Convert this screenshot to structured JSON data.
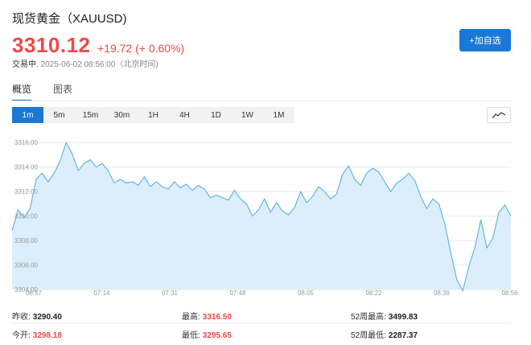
{
  "header": {
    "title": "现货黄金（XAUUSD)",
    "price": "3310.12",
    "change": "+19.72 (+ 0.60%)",
    "status_label": "交易中",
    "status_time": ", 2025-06-02 08:56:00（北京时间)",
    "add_button": "+加自选"
  },
  "tabs": [
    {
      "label": "概览",
      "active": true
    },
    {
      "label": "图表",
      "active": false
    }
  ],
  "ranges": [
    "1m",
    "5m",
    "15m",
    "30m",
    "1H",
    "4H",
    "1D",
    "1W",
    "1M"
  ],
  "active_range": "1m",
  "chart_type_icon": "line-chart-icon",
  "colors": {
    "accent": "#1a78d6",
    "up": "#f04848",
    "chart_line": "#5ab0e6",
    "chart_fill": "#dceefb"
  },
  "chart_data": {
    "type": "area",
    "y_ticks": [
      "3316.00",
      "3314.00",
      "3312.00",
      "3310.00",
      "3308.00",
      "3306.00",
      "3304.00"
    ],
    "x_ticks": [
      "06:57",
      "07:14",
      "07:31",
      "07:48",
      "08:05",
      "08:22",
      "08:39",
      "08:56"
    ],
    "ylim": [
      3304,
      3317
    ],
    "grid": true,
    "values": [
      3308.8,
      3310.5,
      3309.9,
      3310.6,
      3313.0,
      3313.5,
      3312.8,
      3313.5,
      3314.5,
      3316.0,
      3315.1,
      3313.7,
      3314.3,
      3314.6,
      3314.0,
      3314.3,
      3313.7,
      3312.7,
      3313.0,
      3312.7,
      3312.8,
      3312.5,
      3313.2,
      3312.4,
      3312.8,
      3312.4,
      3312.2,
      3312.8,
      3312.3,
      3312.6,
      3312.1,
      3312.5,
      3312.2,
      3311.5,
      3311.7,
      3311.5,
      3311.3,
      3312.1,
      3311.4,
      3311.0,
      3310.0,
      3310.5,
      3311.4,
      3310.3,
      3311.1,
      3310.4,
      3310.1,
      3310.7,
      3312.0,
      3311.1,
      3311.6,
      3312.4,
      3312.0,
      3311.4,
      3311.8,
      3313.4,
      3314.1,
      3313.0,
      3312.5,
      3313.5,
      3313.9,
      3313.6,
      3312.8,
      3312.0,
      3312.7,
      3313.0,
      3313.5,
      3312.9,
      3311.6,
      3310.6,
      3311.4,
      3311.0,
      3309.4,
      3307.0,
      3304.8,
      3303.9,
      3305.9,
      3307.4,
      3309.7,
      3307.4,
      3308.2,
      3310.3,
      3310.9,
      3310.0
    ]
  },
  "stats": {
    "row1": [
      {
        "label": "昨收:",
        "value": "3290.40",
        "red": false
      },
      {
        "label": "最高:",
        "value": "3316.50",
        "red": true
      },
      {
        "label": "52周最高:",
        "value": "3499.83",
        "red": false
      }
    ],
    "row2": [
      {
        "label": "今开:",
        "value": "3298.18",
        "red": true
      },
      {
        "label": "最低:",
        "value": "3295.65",
        "red": true
      },
      {
        "label": "52周最低:",
        "value": "2287.37",
        "red": false
      }
    ]
  }
}
